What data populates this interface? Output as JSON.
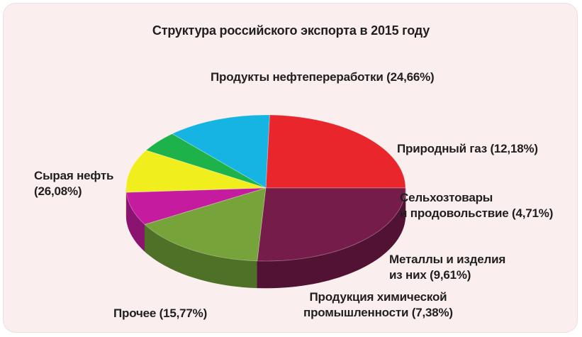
{
  "chart_data": {
    "type": "pie",
    "title": "Структура российского экспорта в 2015 году",
    "three_d": true,
    "slices": [
      {
        "label": "Продукты нефтепереработки",
        "value": 24.66,
        "value_text": "(24,66%)",
        "color": "#e8262b",
        "side": "#a81b1e"
      },
      {
        "label": "Природный газ",
        "value": 12.18,
        "value_text": "(12,18%)",
        "color": "#16b4e3",
        "side": "#0e7fa1"
      },
      {
        "label": "Сельхозтовары и продовольствие",
        "value": 4.71,
        "value_text": "(4,71%)",
        "color": "#1db24a",
        "side": "#157d34"
      },
      {
        "label": "Металлы и изделия из них",
        "value": 9.61,
        "value_text": "(9,61%)",
        "color": "#f1ee1e",
        "side": "#b0ad12"
      },
      {
        "label": "Продукция химической промышленности",
        "value": 7.38,
        "value_text": "(7,38%)",
        "color": "#c51c9f",
        "side": "#8c1471"
      },
      {
        "label": "Прочее",
        "value": 15.77,
        "value_text": "(15,77%)",
        "color": "#76a33a",
        "side": "#4f7127"
      },
      {
        "label": "Сырая нефть",
        "value": 26.08,
        "value_text": "(26,08%)",
        "color": "#751c4b",
        "side": "#521233"
      }
    ]
  },
  "labels": {
    "products": "Продукты нефтепереработки (24,66%)",
    "gas": "Природный газ (12,18%)",
    "agro_line1": "Сельхозтовары",
    "agro_line2": "и продовольствие (4,71%)",
    "metals_line1": "Металлы и изделия",
    "metals_line2": "из них (9,61%)",
    "chem_line1": "Продукция химической",
    "chem_line2": "промышленности (7,38%)",
    "other": "Прочее (15,77%)",
    "crude_line1": "Сырая нефть",
    "crude_line2": "(26,08%)"
  }
}
